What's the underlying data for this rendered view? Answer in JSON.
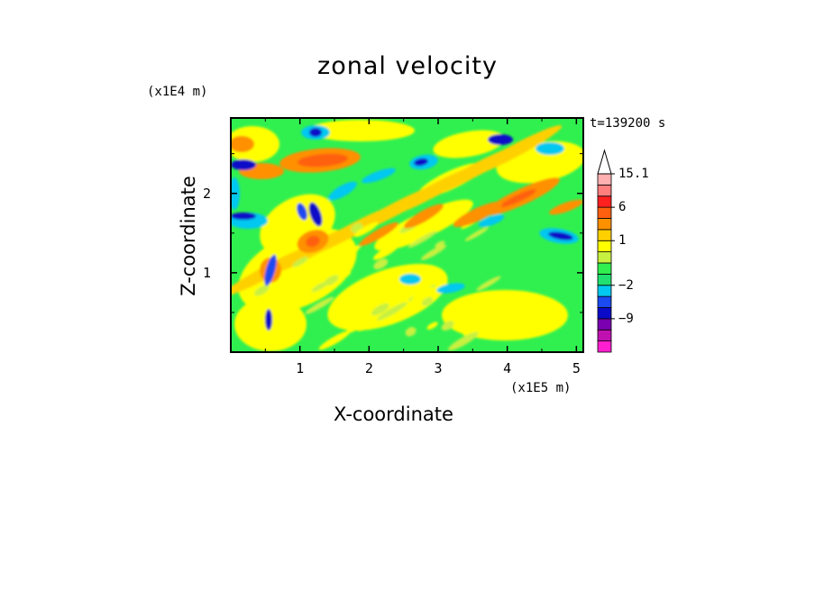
{
  "chart_data": {
    "type": "heatmap",
    "title": "zonal velocity",
    "xlabel": "X-coordinate",
    "ylabel": "Z-coordinate",
    "x_unit_label": "(x1E5 m)",
    "y_unit_label": "(x1E4 m)",
    "timestamp": "t=139200 s",
    "xlim": [
      0,
      5.1
    ],
    "ylim": [
      0,
      2.95
    ],
    "x_ticks": [
      "1",
      "2",
      "3",
      "4",
      "5"
    ],
    "y_ticks": [
      "1",
      "2"
    ],
    "colorbar": {
      "labels": [
        "15.1",
        "6",
        "1",
        "−2",
        "−9"
      ],
      "label_values": [
        15.1,
        6,
        1,
        -2,
        -9
      ],
      "levels": [
        -15,
        -12,
        -9,
        -6,
        -4,
        -2,
        -1,
        0,
        0.5,
        1,
        2,
        4,
        6,
        9,
        12,
        15.1
      ],
      "colors": [
        "#ff1fd0",
        "#c010b0",
        "#7a00b0",
        "#0a0ac8",
        "#1a4af0",
        "#00c8f0",
        "#20e070",
        "#30f050",
        "#c8f040",
        "#ffff00",
        "#ffd000",
        "#ff9000",
        "#ff6010",
        "#ff2020",
        "#ff7f7f",
        "#ffb0b0"
      ],
      "extend": "max"
    },
    "field_description": "Background mostly near-zero (green); positive bands (yellow/orange/red) slope upward toward the upper right; negative streaks (blue) near top and along left side."
  }
}
